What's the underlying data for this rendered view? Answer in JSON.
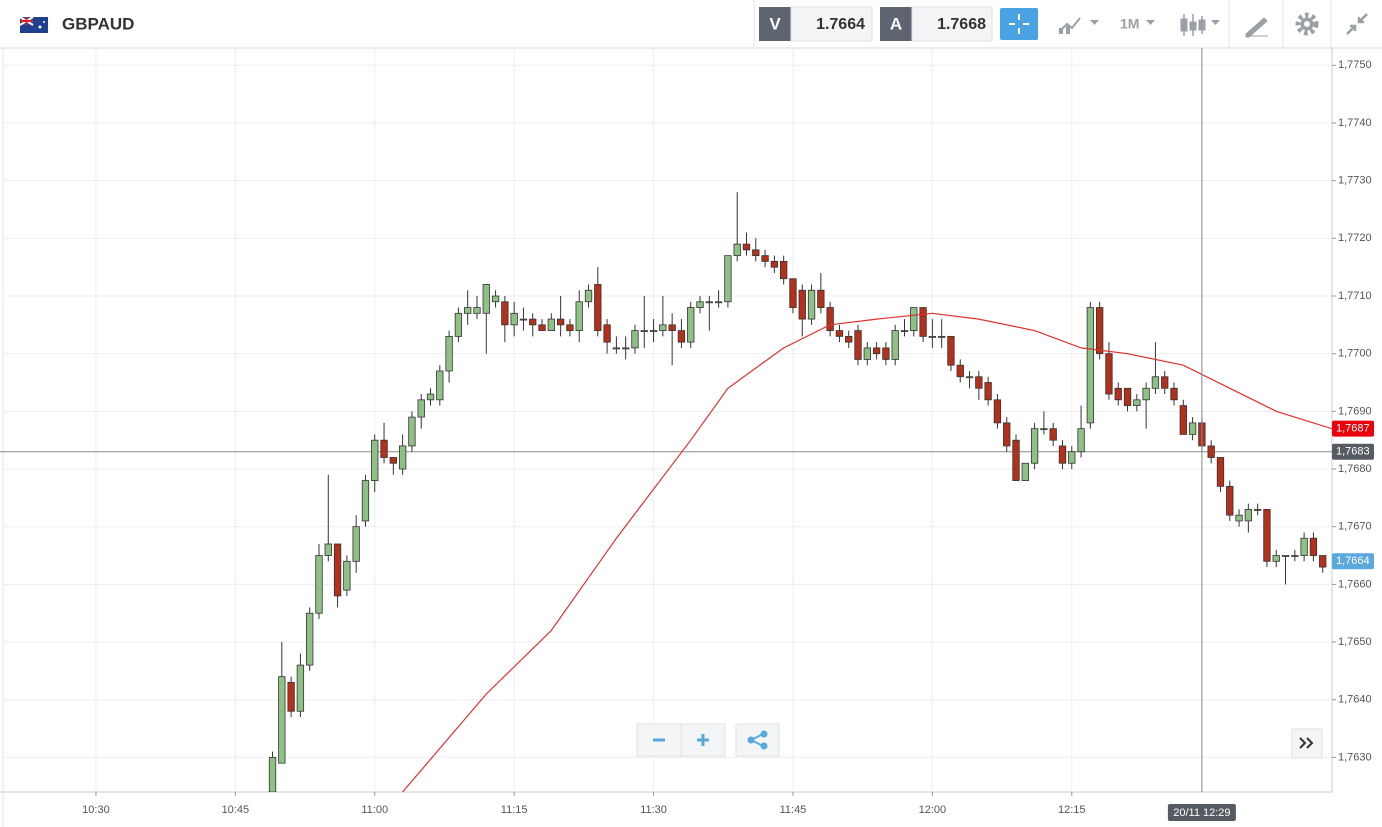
{
  "toolbar": {
    "symbol": "GBPAUD",
    "bid_label": "V",
    "bid": "1.7664",
    "ask_label": "A",
    "ask": "1.7668",
    "interval": "1M"
  },
  "chart_data": {
    "type": "candlestick",
    "x": [
      "10:49",
      "10:50",
      "10:51",
      "10:52",
      "10:53",
      "10:54",
      "10:55",
      "10:56",
      "10:57",
      "10:58",
      "10:59",
      "11:00",
      "11:01",
      "11:02",
      "11:03",
      "11:04",
      "11:05",
      "11:06",
      "11:07",
      "11:08",
      "11:09",
      "11:10",
      "11:11",
      "11:12",
      "11:13",
      "11:14",
      "11:15",
      "11:16",
      "11:17",
      "11:18",
      "11:19",
      "11:20",
      "11:21",
      "11:22",
      "11:23",
      "11:24",
      "11:25",
      "11:26",
      "11:27",
      "11:28",
      "11:29",
      "11:30",
      "11:31",
      "11:32",
      "11:33",
      "11:34",
      "11:35",
      "11:36",
      "11:37",
      "11:38",
      "11:39",
      "11:40",
      "11:41",
      "11:42",
      "11:43",
      "11:44",
      "11:45",
      "11:46",
      "11:47",
      "11:48",
      "11:49",
      "11:50",
      "11:51",
      "11:52",
      "11:53",
      "11:54",
      "11:55",
      "11:56",
      "11:57",
      "11:58",
      "11:59",
      "12:00",
      "12:01",
      "12:02",
      "12:03",
      "12:04",
      "12:05",
      "12:06",
      "12:07",
      "12:08",
      "12:09",
      "12:10",
      "12:11",
      "12:12",
      "12:13",
      "12:14",
      "12:15",
      "12:16",
      "12:17",
      "12:18",
      "12:19",
      "12:20",
      "12:21",
      "12:22",
      "12:23",
      "12:24",
      "12:25",
      "12:26",
      "12:27",
      "12:28",
      "12:29",
      "12:30",
      "12:31",
      "12:32",
      "12:33",
      "12:34",
      "12:35",
      "12:36",
      "12:37",
      "12:38",
      "12:39",
      "12:40",
      "12:41",
      "12:42"
    ],
    "open": [
      1.7624,
      1.7629,
      1.7643,
      1.7638,
      1.7646,
      1.7655,
      1.7665,
      1.7667,
      1.7659,
      1.7664,
      1.7671,
      1.7678,
      1.7685,
      1.7682,
      1.768,
      1.7684,
      1.7689,
      1.7692,
      1.7692,
      1.7697,
      1.7703,
      1.7707,
      1.7707,
      1.7707,
      1.7709,
      1.7709,
      1.7705,
      1.7706,
      1.7706,
      1.7705,
      1.7704,
      1.7706,
      1.7705,
      1.7704,
      1.7709,
      1.7712,
      1.7705,
      1.7701,
      1.7701,
      1.7701,
      1.7704,
      1.7704,
      1.7704,
      1.7705,
      1.7704,
      1.7702,
      1.7708,
      1.7709,
      1.7709,
      1.7709,
      1.7717,
      1.7719,
      1.7718,
      1.7717,
      1.7716,
      1.7716,
      1.7713,
      1.7711,
      1.7706,
      1.7711,
      1.7708,
      1.7704,
      1.7703,
      1.7704,
      1.7699,
      1.7701,
      1.7701,
      1.7699,
      1.7704,
      1.7704,
      1.7708,
      1.7703,
      1.7703,
      1.7703,
      1.7698,
      1.7696,
      1.7696,
      1.7695,
      1.7692,
      1.7688,
      1.7685,
      1.7678,
      1.7681,
      1.7687,
      1.7687,
      1.7684,
      1.7681,
      1.7683,
      1.7688,
      1.7708,
      1.77,
      1.7694,
      1.7694,
      1.7691,
      1.7692,
      1.7694,
      1.7696,
      1.7694,
      1.7691,
      1.7686,
      1.7688,
      1.7684,
      1.7682,
      1.7677,
      1.7671,
      1.7671,
      1.7673,
      1.7673,
      1.7664,
      1.7665,
      1.7665,
      1.7665,
      1.7668,
      1.7665
    ],
    "high": [
      1.7631,
      1.765,
      1.7644,
      1.7648,
      1.7656,
      1.7667,
      1.7679,
      1.7667,
      1.7665,
      1.7672,
      1.7679,
      1.7686,
      1.7688,
      1.7682,
      1.7686,
      1.769,
      1.7693,
      1.7694,
      1.7698,
      1.7704,
      1.7708,
      1.7711,
      1.771,
      1.7712,
      1.7711,
      1.771,
      1.7709,
      1.7708,
      1.7707,
      1.7706,
      1.7707,
      1.771,
      1.7706,
      1.7711,
      1.7712,
      1.7715,
      1.7706,
      1.7703,
      1.7703,
      1.7705,
      1.771,
      1.7706,
      1.771,
      1.7707,
      1.7706,
      1.7709,
      1.771,
      1.771,
      1.7711,
      1.7717,
      1.7728,
      1.7721,
      1.772,
      1.7718,
      1.7717,
      1.7717,
      1.7713,
      1.7712,
      1.7712,
      1.7714,
      1.7709,
      1.7705,
      1.7704,
      1.7705,
      1.7702,
      1.7702,
      1.7702,
      1.7705,
      1.7706,
      1.7708,
      1.7708,
      1.7706,
      1.7706,
      1.7703,
      1.7699,
      1.7697,
      1.7697,
      1.7696,
      1.7693,
      1.7689,
      1.7686,
      1.7681,
      1.7688,
      1.769,
      1.7688,
      1.7685,
      1.7684,
      1.7691,
      1.7709,
      1.7709,
      1.7702,
      1.7695,
      1.7694,
      1.7693,
      1.7695,
      1.7702,
      1.7697,
      1.7695,
      1.7692,
      1.7689,
      1.7689,
      1.7685,
      1.7682,
      1.7678,
      1.7673,
      1.7674,
      1.7674,
      1.7673,
      1.7666,
      1.7665,
      1.7666,
      1.7669,
      1.7669,
      1.7665
    ],
    "low": [
      1.7622,
      1.7629,
      1.7637,
      1.7637,
      1.7645,
      1.7654,
      1.7664,
      1.7656,
      1.7658,
      1.7662,
      1.767,
      1.7676,
      1.7681,
      1.7679,
      1.7679,
      1.7683,
      1.7687,
      1.7691,
      1.7691,
      1.7695,
      1.7702,
      1.7705,
      1.7706,
      1.77,
      1.7708,
      1.7702,
      1.7703,
      1.7704,
      1.7703,
      1.7704,
      1.7704,
      1.7703,
      1.7703,
      1.7702,
      1.7708,
      1.7703,
      1.77,
      1.77,
      1.7699,
      1.77,
      1.7701,
      1.7702,
      1.7703,
      1.7698,
      1.7701,
      1.7701,
      1.7707,
      1.7704,
      1.7708,
      1.7708,
      1.7716,
      1.7717,
      1.7716,
      1.7715,
      1.7714,
      1.7712,
      1.7707,
      1.7703,
      1.7705,
      1.7707,
      1.7703,
      1.7702,
      1.7701,
      1.7698,
      1.7698,
      1.7699,
      1.7698,
      1.7698,
      1.7703,
      1.7703,
      1.7702,
      1.7701,
      1.7701,
      1.7697,
      1.7695,
      1.7694,
      1.7692,
      1.7691,
      1.7687,
      1.7683,
      1.7678,
      1.7678,
      1.768,
      1.7686,
      1.7684,
      1.768,
      1.768,
      1.7682,
      1.7687,
      1.7699,
      1.7692,
      1.7691,
      1.769,
      1.769,
      1.7687,
      1.7693,
      1.7693,
      1.7691,
      1.7686,
      1.7685,
      1.7683,
      1.7681,
      1.7676,
      1.7671,
      1.767,
      1.7669,
      1.7672,
      1.7663,
      1.7663,
      1.766,
      1.7664,
      1.7664,
      1.7664,
      1.7662
    ],
    "close": [
      1.763,
      1.7644,
      1.7638,
      1.7646,
      1.7655,
      1.7665,
      1.7667,
      1.7658,
      1.7664,
      1.767,
      1.7678,
      1.7685,
      1.7682,
      1.7681,
      1.7684,
      1.7689,
      1.7692,
      1.7693,
      1.7697,
      1.7703,
      1.7707,
      1.7708,
      1.7708,
      1.7712,
      1.771,
      1.7705,
      1.7707,
      1.7706,
      1.7705,
      1.7704,
      1.7706,
      1.7705,
      1.7704,
      1.7709,
      1.7711,
      1.7704,
      1.7702,
      1.7701,
      1.7701,
      1.7704,
      1.7704,
      1.7704,
      1.7705,
      1.7704,
      1.7702,
      1.7708,
      1.7709,
      1.7709,
      1.7709,
      1.7717,
      1.7719,
      1.7718,
      1.7717,
      1.7716,
      1.7715,
      1.7713,
      1.7708,
      1.7706,
      1.7711,
      1.7708,
      1.7704,
      1.7703,
      1.7702,
      1.7699,
      1.7701,
      1.77,
      1.7699,
      1.7704,
      1.7704,
      1.7708,
      1.7703,
      1.7703,
      1.7703,
      1.7698,
      1.7696,
      1.7696,
      1.7694,
      1.7692,
      1.7688,
      1.7684,
      1.7678,
      1.7681,
      1.7687,
      1.7687,
      1.7685,
      1.7681,
      1.7683,
      1.7687,
      1.7708,
      1.77,
      1.7693,
      1.7692,
      1.7691,
      1.7692,
      1.7694,
      1.7696,
      1.7694,
      1.7692,
      1.7686,
      1.7688,
      1.7684,
      1.7682,
      1.7677,
      1.7672,
      1.7672,
      1.7673,
      1.7673,
      1.7664,
      1.7665,
      1.7665,
      1.7665,
      1.7668,
      1.7665,
      1.7663
    ],
    "up_color": "#8fc085",
    "down_color": "#b3301c",
    "moving_average": {
      "color": "#e03030",
      "x": [
        "11:03",
        "11:12",
        "11:19",
        "11:26",
        "11:34",
        "11:38",
        "11:44",
        "11:49",
        "11:54",
        "12:00",
        "12:05",
        "12:11",
        "12:16",
        "12:21",
        "12:27",
        "12:32",
        "12:37",
        "12:43"
      ],
      "values": [
        1.7624,
        1.7641,
        1.7652,
        1.7668,
        1.7685,
        1.7694,
        1.7701,
        1.7705,
        1.7706,
        1.7707,
        1.7706,
        1.7704,
        1.7701,
        1.77,
        1.7698,
        1.7694,
        1.769,
        1.7687
      ]
    },
    "xlim": [
      "10:20",
      "12:43"
    ],
    "xticks": [
      "10:30",
      "10:45",
      "11:00",
      "11:15",
      "11:30",
      "11:45",
      "12:00",
      "12:15"
    ],
    "ylim": [
      1.7624,
      1.7753
    ],
    "yticks": [
      {
        "value": 1.763,
        "label": "1,7630"
      },
      {
        "value": 1.764,
        "label": "1,7640"
      },
      {
        "value": 1.765,
        "label": "1,7650"
      },
      {
        "value": 1.766,
        "label": "1,7660"
      },
      {
        "value": 1.767,
        "label": "1,7670"
      },
      {
        "value": 1.768,
        "label": "1,7680"
      },
      {
        "value": 1.769,
        "label": "1,7690"
      },
      {
        "value": 1.77,
        "label": "1,7700"
      },
      {
        "value": 1.771,
        "label": "1,7710"
      },
      {
        "value": 1.772,
        "label": "1,7720"
      },
      {
        "value": 1.773,
        "label": "1,7730"
      },
      {
        "value": 1.774,
        "label": "1,7740"
      },
      {
        "value": 1.775,
        "label": "1,7750"
      }
    ],
    "grid": true,
    "price_markers": [
      {
        "value": 1.7687,
        "label": "1,7687",
        "color": "#e8000b"
      },
      {
        "value": 1.7683,
        "label": "1,7683",
        "color": "#555b61",
        "line": true
      },
      {
        "value": 1.7664,
        "label": "1,7664",
        "color": "#5aa9dc"
      }
    ],
    "crosshair": {
      "x": "12:29",
      "label": "20/11 12:29"
    }
  }
}
